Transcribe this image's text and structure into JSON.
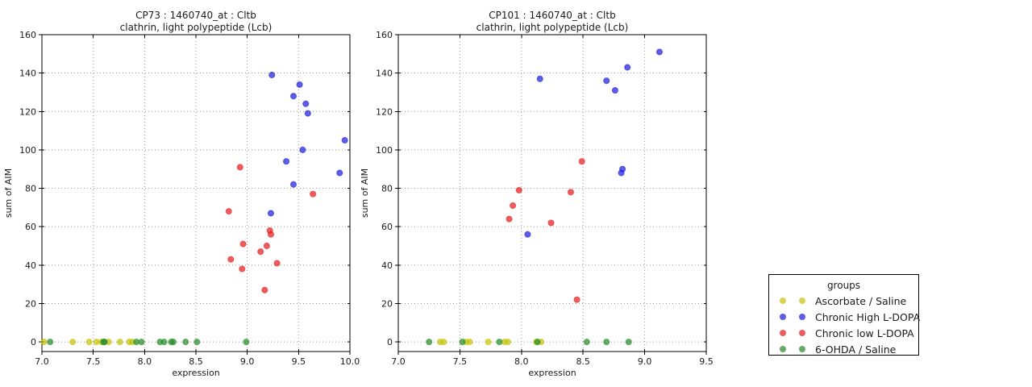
{
  "figure": {
    "background": "#ffffff"
  },
  "legend": {
    "title": "groups",
    "items": [
      {
        "label": "Ascorbate / Saline",
        "color": "#c3c30a"
      },
      {
        "label": "Chronic High L-DOPA",
        "color": "#1e1edc"
      },
      {
        "label": "Chronic low L-DOPA",
        "color": "#e61e1e"
      },
      {
        "label": "6-OHDA / Saline",
        "color": "#288c28"
      }
    ]
  },
  "chart_data": [
    {
      "type": "scatter",
      "title": "CP73 : 1460740_at : Cltb",
      "subtitle": "clathrin, light polypeptide (Lcb)",
      "xlabel": "expression",
      "ylabel": "sum of AIM",
      "xlim": [
        7.0,
        10.0
      ],
      "ylim": [
        -5,
        160
      ],
      "xticks": [
        7.0,
        7.5,
        8.0,
        8.5,
        9.0,
        9.5,
        10.0
      ],
      "xtick_labels": [
        "7.0",
        "7.5",
        "8.0",
        "8.5",
        "9.0",
        "9.5",
        "10.0"
      ],
      "yticks": [
        0,
        20,
        40,
        60,
        80,
        100,
        120,
        140,
        160
      ],
      "ytick_labels": [
        "0",
        "20",
        "40",
        "60",
        "80",
        "100",
        "120",
        "140",
        "160"
      ],
      "grid": true,
      "series": [
        {
          "name": "Ascorbate / Saline",
          "color": "#c3c30a",
          "points": [
            [
              7.02,
              0
            ],
            [
              7.3,
              0
            ],
            [
              7.46,
              0
            ],
            [
              7.53,
              0
            ],
            [
              7.58,
              0
            ],
            [
              7.65,
              0
            ],
            [
              7.76,
              0
            ],
            [
              7.85,
              0
            ],
            [
              7.88,
              0
            ]
          ]
        },
        {
          "name": "Chronic High L-DOPA",
          "color": "#1e1edc",
          "points": [
            [
              9.24,
              139
            ],
            [
              9.51,
              134
            ],
            [
              9.45,
              128
            ],
            [
              9.57,
              124
            ],
            [
              9.59,
              119
            ],
            [
              9.95,
              105
            ],
            [
              9.54,
              100
            ],
            [
              9.38,
              94
            ],
            [
              9.9,
              88
            ],
            [
              9.45,
              82
            ],
            [
              9.23,
              67
            ]
          ]
        },
        {
          "name": "Chronic low L-DOPA",
          "color": "#e61e1e",
          "points": [
            [
              8.93,
              91
            ],
            [
              9.64,
              77
            ],
            [
              8.82,
              68
            ],
            [
              9.22,
              58
            ],
            [
              9.23,
              56
            ],
            [
              8.96,
              51
            ],
            [
              9.19,
              50
            ],
            [
              9.13,
              47
            ],
            [
              8.84,
              43
            ],
            [
              9.29,
              41
            ],
            [
              8.95,
              38
            ],
            [
              9.17,
              27
            ]
          ]
        },
        {
          "name": "6-OHDA / Saline",
          "color": "#288c28",
          "points": [
            [
              7.08,
              0
            ],
            [
              7.6,
              0
            ],
            [
              7.61,
              0
            ],
            [
              7.92,
              0
            ],
            [
              7.97,
              0
            ],
            [
              8.15,
              0
            ],
            [
              8.19,
              0
            ],
            [
              8.26,
              0
            ],
            [
              8.28,
              0
            ],
            [
              8.4,
              0
            ],
            [
              8.51,
              0
            ],
            [
              8.99,
              0
            ]
          ]
        }
      ]
    },
    {
      "type": "scatter",
      "title": "CP101 : 1460740_at : Cltb",
      "subtitle": "clathrin, light polypeptide (Lcb)",
      "xlabel": "expression",
      "ylabel": "sum of AIM",
      "xlim": [
        7.0,
        9.5
      ],
      "ylim": [
        -5,
        160
      ],
      "xticks": [
        7.0,
        7.5,
        8.0,
        8.5,
        9.0,
        9.5
      ],
      "xtick_labels": [
        "7.0",
        "7.5",
        "8.0",
        "8.5",
        "9.0",
        "9.5"
      ],
      "yticks": [
        0,
        20,
        40,
        60,
        80,
        100,
        120,
        140,
        160
      ],
      "ytick_labels": [
        "0",
        "20",
        "40",
        "60",
        "80",
        "100",
        "120",
        "140",
        "160"
      ],
      "grid": true,
      "series": [
        {
          "name": "Ascorbate / Saline",
          "color": "#c3c30a",
          "points": [
            [
              7.34,
              0
            ],
            [
              7.37,
              0
            ],
            [
              7.55,
              0
            ],
            [
              7.58,
              0
            ],
            [
              7.73,
              0
            ],
            [
              7.86,
              0
            ],
            [
              7.89,
              0
            ],
            [
              8.12,
              0
            ],
            [
              8.16,
              0
            ]
          ]
        },
        {
          "name": "Chronic High L-DOPA",
          "color": "#1e1edc",
          "points": [
            [
              9.12,
              151
            ],
            [
              8.86,
              143
            ],
            [
              8.69,
              136
            ],
            [
              8.76,
              131
            ],
            [
              8.15,
              137
            ],
            [
              8.82,
              90
            ],
            [
              8.81,
              88
            ],
            [
              8.05,
              56
            ]
          ]
        },
        {
          "name": "Chronic low L-DOPA",
          "color": "#e61e1e",
          "points": [
            [
              8.49,
              94
            ],
            [
              7.98,
              79
            ],
            [
              8.4,
              78
            ],
            [
              7.93,
              71
            ],
            [
              7.9,
              64
            ],
            [
              8.24,
              62
            ],
            [
              8.45,
              22
            ]
          ]
        },
        {
          "name": "6-OHDA / Saline",
          "color": "#288c28",
          "points": [
            [
              7.25,
              0
            ],
            [
              7.52,
              0
            ],
            [
              7.82,
              0
            ],
            [
              8.13,
              0
            ],
            [
              8.53,
              0
            ],
            [
              8.69,
              0
            ],
            [
              8.87,
              0
            ]
          ]
        }
      ]
    }
  ]
}
